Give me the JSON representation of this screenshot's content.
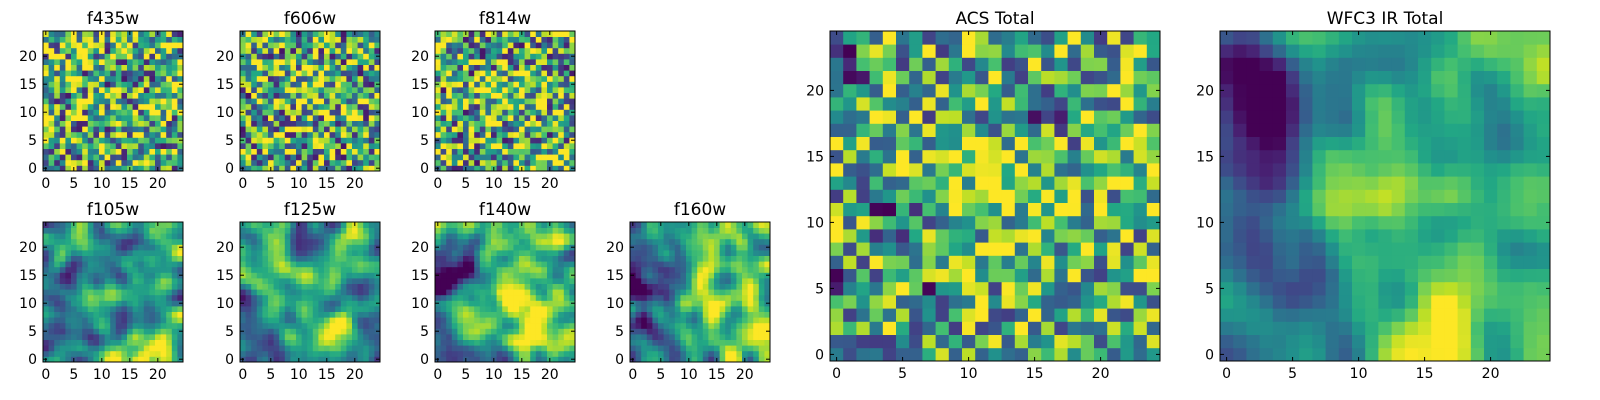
{
  "chart_data": {
    "type": "heatmap",
    "colormap": "viridis",
    "grid": false,
    "panels": [
      {
        "title": "f435w",
        "xlim": [
          0,
          24
        ],
        "ylim": [
          0,
          24
        ],
        "xticks": [
          0,
          5,
          10,
          15,
          20
        ],
        "yticks": [
          0,
          5,
          10,
          15,
          20
        ],
        "pattern": "noise",
        "seed": 11,
        "mean": 0.62,
        "spread": 0.55,
        "bright": [],
        "dark": []
      },
      {
        "title": "f606w",
        "xlim": [
          0,
          24
        ],
        "ylim": [
          0,
          24
        ],
        "xticks": [
          0,
          5,
          10,
          15,
          20
        ],
        "yticks": [
          0,
          5,
          10,
          15,
          20
        ],
        "pattern": "noise",
        "seed": 23,
        "mean": 0.6,
        "spread": 0.55,
        "bright": [
          [
            12,
            14,
            3,
            0.25
          ]
        ],
        "dark": []
      },
      {
        "title": "f814w",
        "xlim": [
          0,
          24
        ],
        "ylim": [
          0,
          24
        ],
        "xticks": [
          0,
          5,
          10,
          15,
          20
        ],
        "yticks": [
          0,
          5,
          10,
          15,
          20
        ],
        "pattern": "noise",
        "seed": 37,
        "mean": 0.6,
        "spread": 0.55,
        "bright": [
          [
            13,
            13,
            3,
            0.25
          ],
          [
            18,
            1,
            2,
            0.3
          ]
        ],
        "dark": []
      },
      {
        "title": "f105w",
        "xlim": [
          0,
          24
        ],
        "ylim": [
          0,
          24
        ],
        "xticks": [
          0,
          5,
          10,
          15,
          20
        ],
        "yticks": [
          0,
          5,
          10,
          15,
          20
        ],
        "pattern": "smooth",
        "seed": 41,
        "mean": 0.58,
        "spread": 0.5,
        "bright": [
          [
            13,
            13,
            4,
            0.2
          ],
          [
            19,
            2,
            3,
            0.3
          ]
        ],
        "dark": [
          [
            4,
            14,
            2,
            0.35
          ],
          [
            15,
            17,
            2,
            0.3
          ]
        ]
      },
      {
        "title": "f125w",
        "xlim": [
          0,
          24
        ],
        "ylim": [
          0,
          24
        ],
        "xticks": [
          0,
          5,
          10,
          15,
          20
        ],
        "yticks": [
          0,
          5,
          10,
          15,
          20
        ],
        "pattern": "smooth",
        "seed": 53,
        "mean": 0.55,
        "spread": 0.5,
        "bright": [
          [
            21,
            22,
            3,
            0.3
          ],
          [
            16,
            1,
            4,
            0.3
          ]
        ],
        "dark": [
          [
            1,
            8,
            3,
            0.45
          ],
          [
            3,
            3,
            3,
            0.3
          ]
        ]
      },
      {
        "title": "f140w",
        "xlim": [
          0,
          24
        ],
        "ylim": [
          0,
          24
        ],
        "xticks": [
          0,
          5,
          10,
          15,
          20
        ],
        "yticks": [
          0,
          5,
          10,
          15,
          20
        ],
        "pattern": "smooth",
        "seed": 67,
        "mean": 0.55,
        "spread": 0.5,
        "bright": [
          [
            14,
            12,
            4,
            0.3
          ],
          [
            20,
            3,
            4,
            0.3
          ]
        ],
        "dark": [
          [
            2,
            16,
            4,
            0.35
          ],
          [
            4,
            3,
            3,
            0.3
          ]
        ]
      },
      {
        "title": "f160w",
        "xlim": [
          0,
          24
        ],
        "ylim": [
          0,
          24
        ],
        "xticks": [
          0,
          5,
          10,
          15,
          20
        ],
        "yticks": [
          0,
          5,
          10,
          15,
          20
        ],
        "pattern": "smooth",
        "seed": 79,
        "mean": 0.55,
        "spread": 0.5,
        "bright": [
          [
            13,
            13,
            4,
            0.35
          ],
          [
            20,
            3,
            4,
            0.3
          ]
        ],
        "dark": [
          [
            3,
            16,
            4,
            0.45
          ],
          [
            2,
            8,
            3,
            0.3
          ]
        ]
      },
      {
        "title": "ACS Total",
        "xlim": [
          0,
          24
        ],
        "ylim": [
          0,
          24
        ],
        "xticks": [
          0,
          5,
          10,
          15,
          20
        ],
        "yticks": [
          0,
          5,
          10,
          15,
          20
        ],
        "pattern": "noise",
        "seed": 97,
        "mean": 0.62,
        "spread": 0.45,
        "bright": [
          [
            12,
            13,
            2,
            0.35
          ]
        ],
        "dark": [
          [
            1,
            22,
            1,
            0.6
          ],
          [
            16,
            19,
            1,
            0.6
          ],
          [
            4,
            11,
            1,
            0.6
          ],
          [
            8,
            4,
            1,
            0.6
          ],
          [
            0,
            5,
            1,
            0.6
          ]
        ]
      },
      {
        "title": "WFC3 IR Total",
        "xlim": [
          0,
          24
        ],
        "ylim": [
          0,
          24
        ],
        "xticks": [
          0,
          5,
          10,
          15,
          20
        ],
        "yticks": [
          0,
          5,
          10,
          15,
          20
        ],
        "pattern": "smooth",
        "seed": 131,
        "mean": 0.55,
        "spread": 0.35,
        "bright": [
          [
            12,
            13,
            3,
            0.35
          ],
          [
            19,
            1,
            5,
            0.35
          ],
          [
            23,
            22,
            3,
            0.3
          ]
        ],
        "dark": [
          [
            3,
            17,
            3,
            0.55
          ],
          [
            2,
            22,
            3,
            0.45
          ],
          [
            5,
            5,
            3,
            0.3
          ],
          [
            1,
            10,
            3,
            0.3
          ]
        ]
      }
    ]
  }
}
